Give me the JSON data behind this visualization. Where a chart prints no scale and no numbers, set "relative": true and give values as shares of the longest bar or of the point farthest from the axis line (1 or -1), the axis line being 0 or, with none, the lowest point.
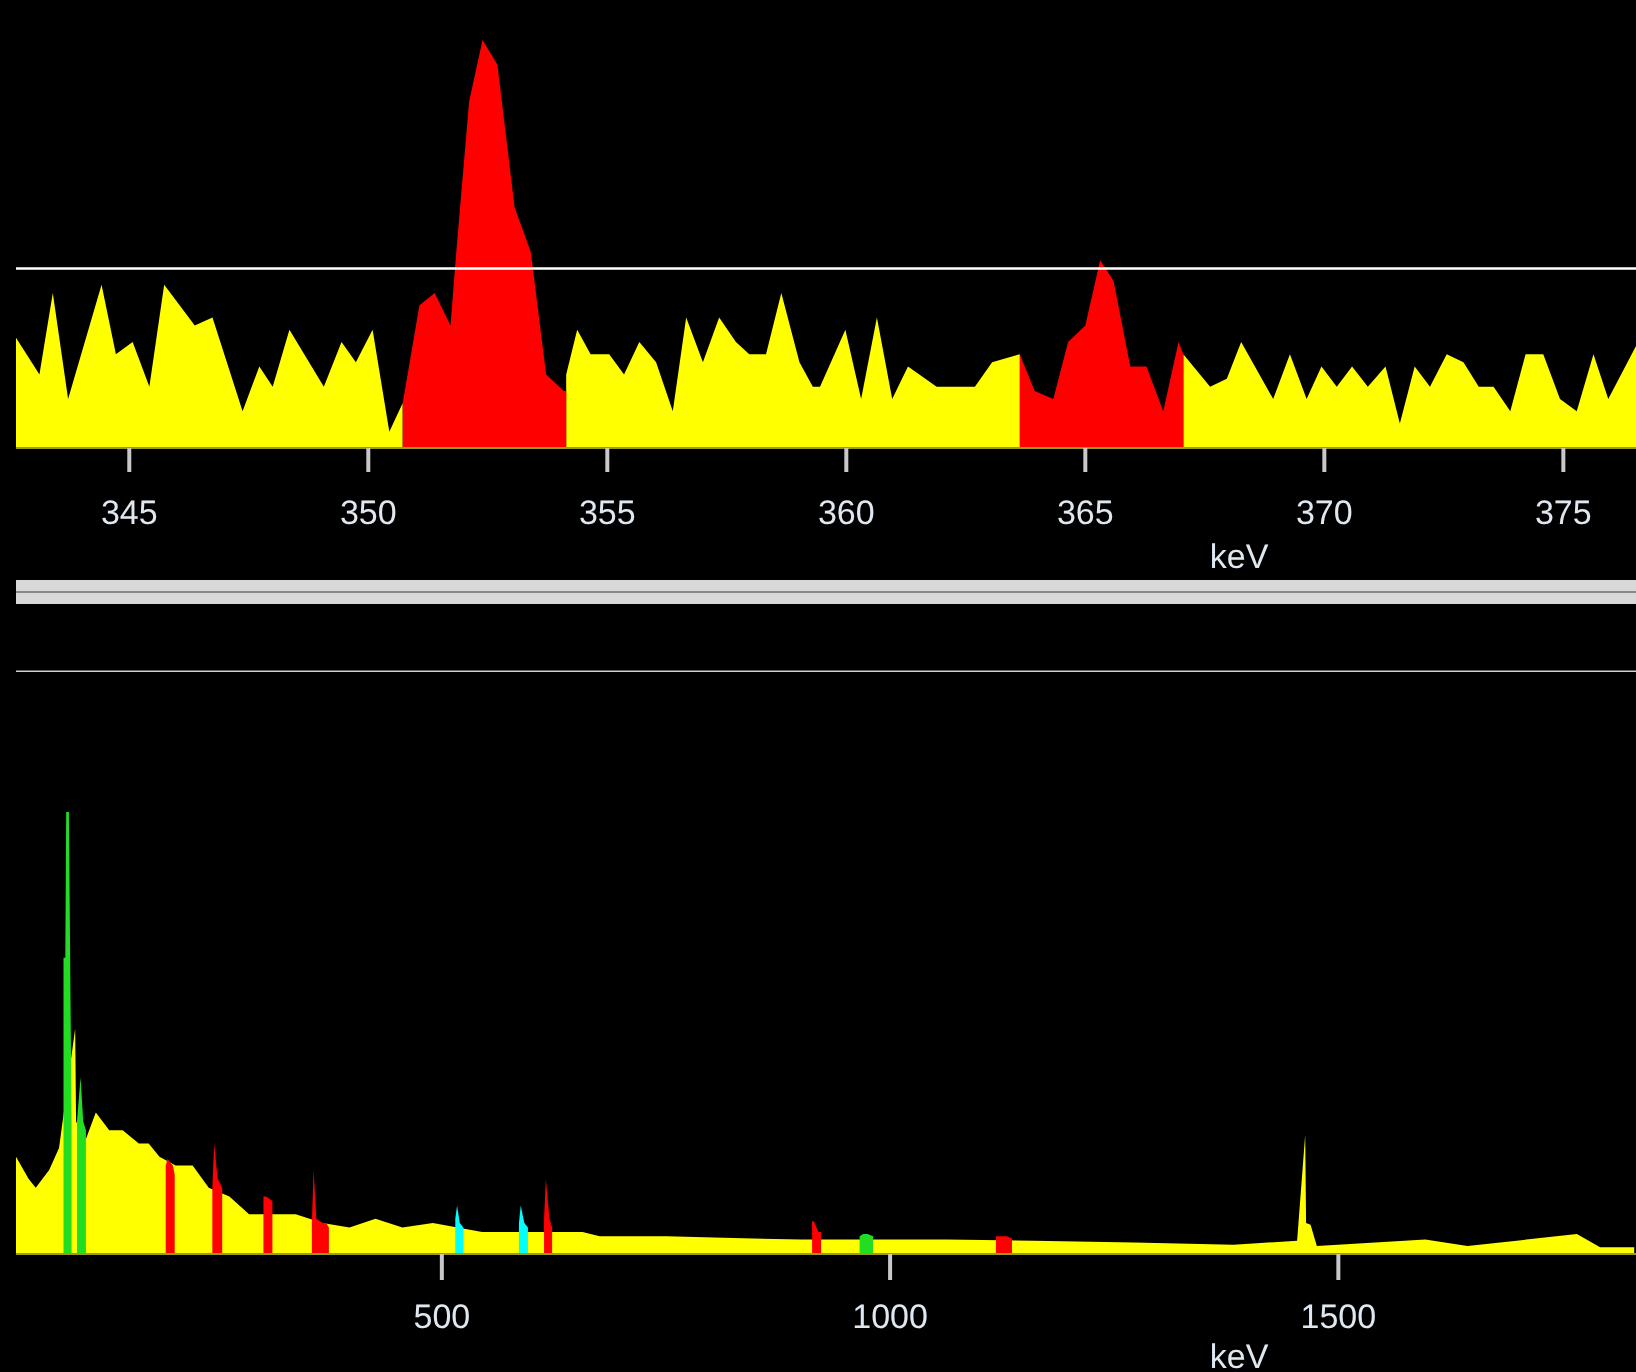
{
  "chart_data": [
    {
      "type": "area",
      "relative": true,
      "xlabel": "keV",
      "xlim": [
        342.63,
        376.52
      ],
      "xticks": [
        345,
        350,
        355,
        360,
        365,
        370,
        375
      ],
      "ref_lines": [
        {
          "axis": "y",
          "value": 0.44,
          "color": "#ffffff"
        }
      ],
      "series": [
        {
          "color": "#ffff00",
          "x": [
            342.63,
            343.12,
            343.4,
            343.72,
            344.42,
            344.72,
            345.07,
            345.42,
            345.73,
            346.37,
            346.74,
            347.37,
            347.72,
            348.0,
            348.35,
            349.07,
            349.44,
            349.74,
            350.09,
            350.44,
            350.72,
            352.4,
            354.14,
            354.37,
            354.65,
            355.04,
            355.35,
            355.67,
            356.02,
            356.37,
            356.65,
            357.0,
            357.34,
            357.69,
            357.97,
            358.32,
            358.64,
            359.02,
            359.3,
            359.45,
            359.98,
            360.31,
            360.64,
            360.96,
            361.29,
            361.89,
            362.69,
            363.05,
            363.63,
            365.3,
            367.05,
            367.61,
            367.96,
            368.26,
            368.93,
            369.28,
            369.63,
            369.94,
            370.26,
            370.58,
            370.91,
            371.28,
            371.58,
            371.89,
            372.21,
            372.56,
            372.91,
            373.23,
            373.54,
            373.89,
            374.21,
            374.58,
            374.93,
            375.28,
            375.63,
            375.94,
            376.52
          ],
          "values": [
            0.27,
            0.18,
            0.38,
            0.12,
            0.4,
            0.23,
            0.26,
            0.15,
            0.4,
            0.3,
            0.32,
            0.09,
            0.2,
            0.15,
            0.29,
            0.15,
            0.26,
            0.21,
            0.29,
            0.04,
            0.11,
            null,
            0.18,
            0.29,
            0.23,
            0.23,
            0.18,
            0.26,
            0.21,
            0.09,
            0.32,
            0.21,
            0.32,
            0.26,
            0.23,
            0.23,
            0.38,
            0.21,
            0.15,
            0.15,
            0.29,
            0.12,
            0.32,
            0.12,
            0.2,
            0.15,
            0.15,
            0.21,
            0.23,
            null,
            0.23,
            0.15,
            0.17,
            0.26,
            0.12,
            0.23,
            0.12,
            0.2,
            0.15,
            0.2,
            0.15,
            0.2,
            0.06,
            0.2,
            0.15,
            0.23,
            0.21,
            0.15,
            0.15,
            0.09,
            0.23,
            0.23,
            0.12,
            0.09,
            0.23,
            0.12,
            0.25
          ]
        },
        {
          "color": "#ff0000",
          "x": [
            350.72,
            351.07,
            351.39,
            351.72,
            351.84,
            352.11,
            352.39,
            352.7,
            353.06,
            353.4,
            353.72,
            354.09,
            354.14,
            359.0,
            363.63,
            363.94,
            364.33,
            364.64,
            365.0,
            365.31,
            365.59,
            365.94,
            366.28,
            366.63,
            366.95,
            367.05
          ],
          "values": [
            0.11,
            0.35,
            0.38,
            0.3,
            0.48,
            0.85,
            1.0,
            0.94,
            0.59,
            0.48,
            0.18,
            0.14,
            0.14,
            null,
            0.23,
            0.14,
            0.12,
            0.26,
            0.3,
            0.46,
            0.41,
            0.2,
            0.2,
            0.09,
            0.26,
            0.23
          ]
        }
      ]
    },
    {
      "type": "area",
      "relative": true,
      "xlabel": "keV",
      "xlim": [
        25,
        1832
      ],
      "xticks": [
        500,
        1000,
        1500
      ],
      "series": [
        {
          "color": "#ffff00",
          "x": [
            25,
            39,
            47,
            62,
            73,
            91,
            92,
            103,
            114,
            129,
            144,
            162,
            173,
            185,
            203,
            222,
            240,
            263,
            285,
            315,
            337,
            367,
            397,
            426,
            456,
            490,
            545,
            612,
            657,
            676,
            751,
            825,
            900,
            989,
            1063,
            1160,
            1272,
            1383,
            1454,
            1463,
            1464,
            1469,
            1476,
            1597,
            1644,
            1766,
            1792,
            1830
          ],
          "values": [
            0.22,
            0.17,
            0.15,
            0.19,
            0.24,
            0.51,
            0.3,
            0.26,
            0.32,
            0.28,
            0.28,
            0.25,
            0.25,
            0.22,
            0.2,
            0.2,
            0.15,
            0.13,
            0.09,
            0.09,
            0.09,
            0.07,
            0.06,
            0.08,
            0.06,
            0.07,
            0.05,
            0.05,
            0.05,
            0.04,
            0.04,
            0.036,
            0.033,
            0.033,
            0.033,
            0.03,
            0.026,
            0.021,
            0.03,
            0.27,
            0.07,
            0.066,
            0.018,
            0.033,
            0.018,
            0.045,
            0.015,
            0.015
          ]
        },
        {
          "color": "#22dd22",
          "x": [
            78,
            80,
            81,
            84,
            87,
            90,
            93,
            97,
            100,
            103,
            500,
            966,
            970,
            975,
            981
          ],
          "values": [
            0.67,
            0.67,
            1.0,
            1.0,
            0.3,
            null,
            0.3,
            0.4,
            0.3,
            0.28,
            null,
            0.04,
            0.045,
            0.045,
            0.04
          ]
        },
        {
          "color": "#ff0000",
          "x": [
            192,
            194,
            200,
            202,
            220,
            244,
            246,
            250,
            255,
            280,
            301,
            304,
            311,
            330,
            355,
            357,
            360,
            367,
            368,
            371,
            374,
            500,
            614,
            616,
            620,
            623,
            800,
            913,
            915,
            920,
            923,
            1000,
            1118,
            1122,
            1130,
            1136
          ],
          "values": [
            0.2,
            0.215,
            0.2,
            0.18,
            null,
            0.15,
            0.25,
            0.17,
            0.15,
            null,
            0.13,
            0.13,
            0.12,
            null,
            0.07,
            0.19,
            0.08,
            0.07,
            0.07,
            0.07,
            0.06,
            null,
            0.08,
            0.17,
            0.08,
            0.06,
            null,
            0.074,
            0.074,
            0.05,
            0.05,
            null,
            0.04,
            0.04,
            0.04,
            0.035
          ]
        },
        {
          "color": "#00ffff",
          "x": [
            515,
            517,
            520,
            524,
            550,
            586,
            588,
            592,
            596
          ],
          "values": [
            0.08,
            0.11,
            0.07,
            0.06,
            null,
            0.07,
            0.11,
            0.07,
            0.06
          ]
        }
      ]
    }
  ]
}
